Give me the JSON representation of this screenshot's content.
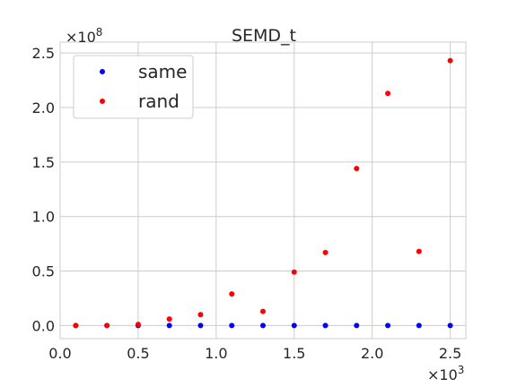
{
  "chart_data": {
    "type": "scatter",
    "title": "SEMD_t",
    "xlabel": "",
    "ylabel": "",
    "x_multiplier_label": "×10",
    "x_multiplier_exp": "3",
    "y_multiplier_label": "×10",
    "y_multiplier_exp": "8",
    "xlim": [
      0.0,
      2.6
    ],
    "ylim": [
      -0.12,
      2.6
    ],
    "x_ticks": [
      0.0,
      0.5,
      1.0,
      1.5,
      2.0,
      2.5
    ],
    "x_tick_labels": [
      "0.0",
      "0.5",
      "1.0",
      "1.5",
      "2.0",
      "2.5"
    ],
    "y_ticks": [
      0.0,
      0.5,
      1.0,
      1.5,
      2.0,
      2.5
    ],
    "y_tick_labels": [
      "0.0",
      "0.5",
      "1.0",
      "1.5",
      "2.0",
      "2.5"
    ],
    "grid": true,
    "legend_position": "top-left",
    "series": [
      {
        "name": "same",
        "color": "#0000ff",
        "x": [
          0.1,
          0.3,
          0.5,
          0.7,
          0.9,
          1.1,
          1.3,
          1.5,
          1.7,
          1.9,
          2.1,
          2.3,
          2.5
        ],
        "y": [
          0.0,
          0.0,
          0.0,
          0.0,
          0.0,
          0.0,
          0.0,
          0.0,
          0.0,
          0.0,
          0.0,
          0.0,
          0.0
        ]
      },
      {
        "name": "rand",
        "color": "#ff0000",
        "x": [
          0.1,
          0.3,
          0.5,
          0.7,
          0.9,
          1.1,
          1.3,
          1.5,
          1.7,
          1.9,
          2.1,
          2.3,
          2.5
        ],
        "y": [
          0.0,
          0.0,
          0.01,
          0.06,
          0.1,
          0.29,
          0.13,
          0.49,
          0.67,
          1.44,
          2.13,
          0.68,
          2.43
        ]
      }
    ]
  }
}
